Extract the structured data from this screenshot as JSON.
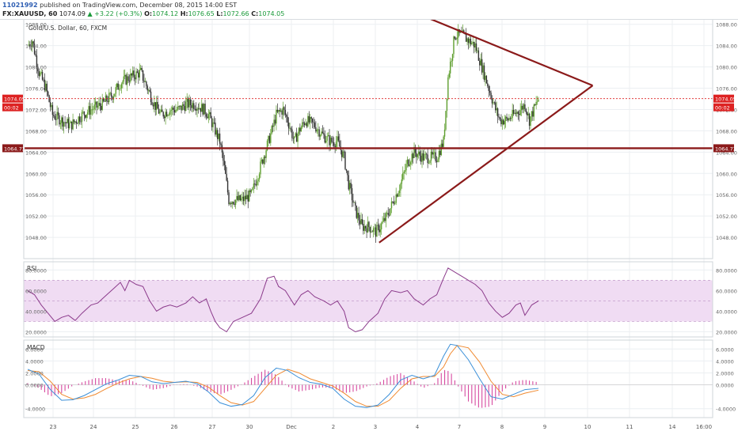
{
  "header": {
    "user_id": "11021992",
    "published": "published on TradingView.com, December 08, 2015 14:00 EST",
    "symbol": "FX:XAUUSD, 60",
    "last": "1074.09",
    "change": "▲ +3.22 (+0.3%)",
    "o_label": "O:",
    "o": "1074.12",
    "h_label": "H:",
    "h": "1076.65",
    "l_label": "L:",
    "l": "1072.66",
    "c_label": "C:",
    "c": "1074.05"
  },
  "colors": {
    "up": "#5e9e2e",
    "down": "#333333",
    "trend": "#8b1a1a",
    "price_line": "#dd2222",
    "rsi": "#8b3a8b",
    "rsi_band": "#f0dcf3",
    "macd": "#3a8fd8",
    "signal": "#f08a30",
    "hist": "#d64aa0"
  },
  "chart_data": [
    {
      "type": "candlestick",
      "title": "Gold/U.S. Dollar, 60, FXCM",
      "ylim": [
        1044,
        1089
      ],
      "y_ticks": [
        "1048.00",
        "1052.00",
        "1056.00",
        "1060.00",
        "1064.00",
        "1068.00",
        "1072.00",
        "1076.00",
        "1080.00",
        "1084.00",
        "1088.00"
      ],
      "x_ticks": [
        "23",
        "24",
        "25",
        "26",
        "27",
        "30",
        "Dec",
        "2",
        "3",
        "4",
        "7",
        "8",
        "9",
        "10",
        "11",
        "14",
        "16:00"
      ],
      "last_price": "1074.05",
      "last_price_value": 1074.05,
      "countdown": "00:02",
      "support_label": "1064.73",
      "support_value": 1064.73,
      "price_path": [
        [
          0,
          1084
        ],
        [
          4,
          1085
        ],
        [
          10,
          1079
        ],
        [
          16,
          1076
        ],
        [
          22,
          1071
        ],
        [
          30,
          1070
        ],
        [
          38,
          1069
        ],
        [
          48,
          1071
        ],
        [
          56,
          1072
        ],
        [
          66,
          1073
        ],
        [
          76,
          1075
        ],
        [
          82,
          1077
        ],
        [
          90,
          1078
        ],
        [
          100,
          1079
        ],
        [
          106,
          1076
        ],
        [
          112,
          1073
        ],
        [
          118,
          1071
        ],
        [
          126,
          1072
        ],
        [
          134,
          1072
        ],
        [
          140,
          1073
        ],
        [
          148,
          1073
        ],
        [
          156,
          1072
        ],
        [
          160,
          1071
        ],
        [
          166,
          1068
        ],
        [
          170,
          1066
        ],
        [
          174,
          1061
        ],
        [
          178,
          1055
        ],
        [
          182,
          1055
        ],
        [
          190,
          1055
        ],
        [
          198,
          1056
        ],
        [
          204,
          1060
        ],
        [
          210,
          1064
        ],
        [
          216,
          1068
        ],
        [
          220,
          1071
        ],
        [
          226,
          1072
        ],
        [
          230,
          1070
        ],
        [
          236,
          1066
        ],
        [
          240,
          1068
        ],
        [
          246,
          1070
        ],
        [
          254,
          1069
        ],
        [
          262,
          1067
        ],
        [
          268,
          1066
        ],
        [
          274,
          1066
        ],
        [
          280,
          1063
        ],
        [
          284,
          1058
        ],
        [
          290,
          1053
        ],
        [
          296,
          1050
        ],
        [
          302,
          1050
        ],
        [
          308,
          1049
        ],
        [
          312,
          1050
        ],
        [
          318,
          1052
        ],
        [
          324,
          1055
        ],
        [
          330,
          1058
        ],
        [
          336,
          1062
        ],
        [
          342,
          1064
        ],
        [
          350,
          1063
        ],
        [
          356,
          1063
        ],
        [
          362,
          1063
        ],
        [
          368,
          1066
        ],
        [
          372,
          1078
        ],
        [
          378,
          1086
        ],
        [
          384,
          1086
        ],
        [
          390,
          1085
        ],
        [
          396,
          1084
        ],
        [
          402,
          1080
        ],
        [
          408,
          1076
        ],
        [
          414,
          1072
        ],
        [
          418,
          1070
        ],
        [
          424,
          1070
        ],
        [
          430,
          1071
        ],
        [
          436,
          1072
        ],
        [
          440,
          1073
        ],
        [
          444,
          1070
        ],
        [
          448,
          1072
        ],
        [
          452,
          1074
        ]
      ]
    },
    {
      "type": "line",
      "title": "RSI",
      "ylim": [
        15,
        88
      ],
      "y_ticks": [
        "20.0000",
        "40.0000",
        "60.0000",
        "80.0000"
      ],
      "band": [
        30,
        70
      ],
      "values": [
        [
          0,
          60
        ],
        [
          6,
          56
        ],
        [
          12,
          46
        ],
        [
          18,
          38
        ],
        [
          24,
          30
        ],
        [
          30,
          34
        ],
        [
          36,
          36
        ],
        [
          42,
          31
        ],
        [
          48,
          38
        ],
        [
          56,
          46
        ],
        [
          62,
          48
        ],
        [
          70,
          56
        ],
        [
          76,
          62
        ],
        [
          82,
          68
        ],
        [
          86,
          60
        ],
        [
          90,
          70
        ],
        [
          96,
          66
        ],
        [
          102,
          64
        ],
        [
          108,
          50
        ],
        [
          114,
          40
        ],
        [
          120,
          44
        ],
        [
          126,
          46
        ],
        [
          132,
          44
        ],
        [
          140,
          48
        ],
        [
          146,
          54
        ],
        [
          152,
          48
        ],
        [
          158,
          52
        ],
        [
          162,
          40
        ],
        [
          166,
          30
        ],
        [
          170,
          24
        ],
        [
          176,
          20
        ],
        [
          182,
          30
        ],
        [
          190,
          34
        ],
        [
          198,
          38
        ],
        [
          206,
          52
        ],
        [
          212,
          72
        ],
        [
          218,
          74
        ],
        [
          222,
          64
        ],
        [
          228,
          60
        ],
        [
          236,
          46
        ],
        [
          242,
          56
        ],
        [
          248,
          60
        ],
        [
          254,
          54
        ],
        [
          262,
          50
        ],
        [
          268,
          46
        ],
        [
          274,
          50
        ],
        [
          280,
          40
        ],
        [
          284,
          24
        ],
        [
          290,
          20
        ],
        [
          296,
          22
        ],
        [
          302,
          30
        ],
        [
          310,
          38
        ],
        [
          316,
          52
        ],
        [
          322,
          60
        ],
        [
          330,
          58
        ],
        [
          336,
          60
        ],
        [
          342,
          52
        ],
        [
          350,
          46
        ],
        [
          356,
          52
        ],
        [
          362,
          56
        ],
        [
          368,
          72
        ],
        [
          372,
          82
        ],
        [
          378,
          78
        ],
        [
          384,
          74
        ],
        [
          390,
          70
        ],
        [
          396,
          66
        ],
        [
          402,
          60
        ],
        [
          408,
          48
        ],
        [
          414,
          40
        ],
        [
          420,
          34
        ],
        [
          426,
          38
        ],
        [
          432,
          46
        ],
        [
          436,
          48
        ],
        [
          440,
          36
        ],
        [
          446,
          46
        ],
        [
          452,
          50
        ]
      ]
    },
    {
      "type": "line",
      "title": "MACD",
      "ylim": [
        -5.5,
        7.5
      ],
      "y_ticks": [
        "-4.0000",
        "0.0000",
        "2.0000",
        "4.0000",
        "6.0000"
      ],
      "series": [
        {
          "role": "macd",
          "values": [
            [
              0,
              2.6
            ],
            [
              10,
              1.8
            ],
            [
              20,
              -0.8
            ],
            [
              30,
              -2.6
            ],
            [
              40,
              -2.5
            ],
            [
              50,
              -1.8
            ],
            [
              60,
              -0.8
            ],
            [
              70,
              0.2
            ],
            [
              80,
              0.8
            ],
            [
              90,
              1.6
            ],
            [
              100,
              1.4
            ],
            [
              110,
              0.5
            ],
            [
              120,
              0.2
            ],
            [
              130,
              0.4
            ],
            [
              140,
              0.6
            ],
            [
              150,
              0.2
            ],
            [
              160,
              -1.2
            ],
            [
              170,
              -3.0
            ],
            [
              180,
              -3.6
            ],
            [
              190,
              -3.3
            ],
            [
              200,
              -1.8
            ],
            [
              210,
              1.2
            ],
            [
              220,
              2.8
            ],
            [
              230,
              2.4
            ],
            [
              240,
              1.2
            ],
            [
              250,
              0.4
            ],
            [
              260,
              0.1
            ],
            [
              270,
              -0.6
            ],
            [
              280,
              -2.4
            ],
            [
              290,
              -3.6
            ],
            [
              300,
              -3.8
            ],
            [
              310,
              -3.4
            ],
            [
              320,
              -1.6
            ],
            [
              330,
              0.8
            ],
            [
              340,
              1.6
            ],
            [
              350,
              1.0
            ],
            [
              360,
              1.6
            ],
            [
              368,
              4.8
            ],
            [
              374,
              6.8
            ],
            [
              380,
              6.6
            ],
            [
              390,
              4.2
            ],
            [
              400,
              1.0
            ],
            [
              410,
              -2.0
            ],
            [
              420,
              -2.4
            ],
            [
              430,
              -1.6
            ],
            [
              440,
              -0.8
            ],
            [
              452,
              -0.6
            ]
          ]
        },
        {
          "role": "signal",
          "values": [
            [
              0,
              2.4
            ],
            [
              10,
              2.2
            ],
            [
              20,
              0.6
            ],
            [
              30,
              -1.6
            ],
            [
              40,
              -2.4
            ],
            [
              50,
              -2.2
            ],
            [
              60,
              -1.6
            ],
            [
              70,
              -0.6
            ],
            [
              80,
              0.3
            ],
            [
              90,
              1.0
            ],
            [
              100,
              1.4
            ],
            [
              110,
              1.1
            ],
            [
              120,
              0.6
            ],
            [
              130,
              0.4
            ],
            [
              140,
              0.5
            ],
            [
              150,
              0.4
            ],
            [
              160,
              -0.4
            ],
            [
              170,
              -1.8
            ],
            [
              180,
              -3.0
            ],
            [
              190,
              -3.4
            ],
            [
              200,
              -2.8
            ],
            [
              210,
              -0.6
            ],
            [
              220,
              1.6
            ],
            [
              230,
              2.6
            ],
            [
              240,
              2.0
            ],
            [
              250,
              1.0
            ],
            [
              260,
              0.4
            ],
            [
              270,
              -0.2
            ],
            [
              280,
              -1.4
            ],
            [
              290,
              -2.8
            ],
            [
              300,
              -3.6
            ],
            [
              310,
              -3.6
            ],
            [
              320,
              -2.6
            ],
            [
              330,
              -0.6
            ],
            [
              340,
              1.0
            ],
            [
              350,
              1.4
            ],
            [
              360,
              1.4
            ],
            [
              368,
              3.0
            ],
            [
              374,
              5.2
            ],
            [
              380,
              6.6
            ],
            [
              390,
              6.2
            ],
            [
              400,
              3.8
            ],
            [
              410,
              0.6
            ],
            [
              420,
              -1.6
            ],
            [
              430,
              -2.0
            ],
            [
              440,
              -1.4
            ],
            [
              452,
              -0.9
            ]
          ]
        }
      ]
    }
  ]
}
